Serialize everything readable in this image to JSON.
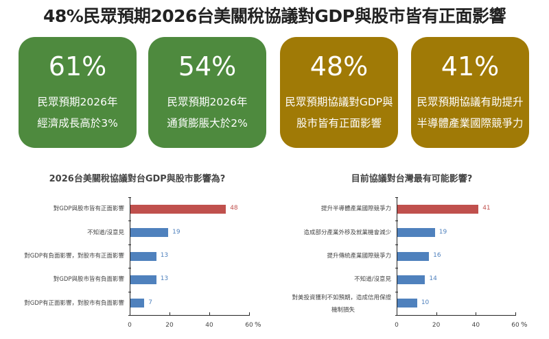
{
  "title": "48%民眾預期2026台美關稅協議對GDP與股市皆有正面影響",
  "cards": [
    {
      "pct": "61%",
      "line1": "民眾預期2026年",
      "line2": "經濟成長高於3%",
      "color": "#4e8a3e"
    },
    {
      "pct": "54%",
      "line1": "民眾預期2026年",
      "line2": "通貨膨脹大於2%",
      "color": "#4e8a3e"
    },
    {
      "pct": "48%",
      "line1": "民眾預期協議對GDP與",
      "line2": "股市皆有正面影響",
      "color": "#a07a06"
    },
    {
      "pct": "41%",
      "line1": "民眾預期協議有助提升",
      "line2": "半導體產業國際競爭力",
      "color": "#a07a06"
    }
  ],
  "colors": {
    "highlight": "#c0504d",
    "normal": "#4f81bd",
    "green_card": "#4e8a3e",
    "gold_card": "#a07a06"
  },
  "chart_data": [
    {
      "type": "bar",
      "orientation": "horizontal",
      "title": "2026台美關稅協議對台GDP與股市影響為?",
      "categories": [
        "對GDP與股市皆有正面影響",
        "不知道/沒意見",
        "對GDP有負面影響，對股市有正面影響",
        "對GDP與股市皆有負面影響",
        "對GDP有正面影響，對股市有負面影響"
      ],
      "values": [
        48,
        19,
        13,
        13,
        7
      ],
      "value_labels": [
        "48",
        "19",
        "13",
        "13",
        "7"
      ],
      "xlabel": "%",
      "xticks": [
        "0",
        "20",
        "40",
        "60"
      ],
      "xlim": [
        0,
        60
      ],
      "grid": false
    },
    {
      "type": "bar",
      "orientation": "horizontal",
      "title": "目前協議對台灣最有可能影響?",
      "categories": [
        "提升半導體產業國際競爭力",
        "造成部分產業外移及就業機會減少",
        "提升傳統產業國際競爭力",
        "不知道/沒意見",
        "對美投資獲利不如預期，造成信用保證機制損失"
      ],
      "category_lines": [
        [
          "提升半導體產業國際競爭力"
        ],
        [
          "造成部分產業外移及就業機會減少"
        ],
        [
          "提升傳統產業國際競爭力"
        ],
        [
          "不知道/沒意見"
        ],
        [
          "對美投資獲利不如預期，造成信用保證",
          "機制損失"
        ]
      ],
      "values": [
        41,
        19,
        16,
        14,
        10
      ],
      "value_labels": [
        "41",
        "19",
        "16",
        "14",
        "10"
      ],
      "xlabel": "%",
      "xticks": [
        "0",
        "20",
        "40",
        "60"
      ],
      "xlim": [
        0,
        60
      ],
      "grid": false
    }
  ]
}
